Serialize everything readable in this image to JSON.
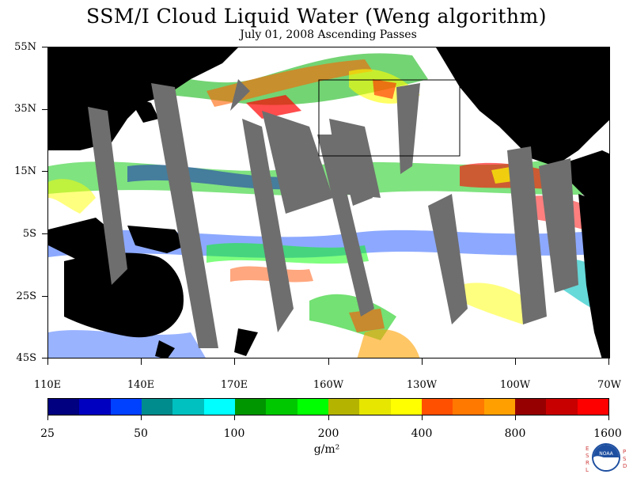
{
  "title": "SSM/I Cloud Liquid Water (Weng algorithm)",
  "subtitle": "July 01, 2008  Ascending Passes",
  "latitude_labels": [
    "55N",
    "35N",
    "15N",
    "5S",
    "25S",
    "45S"
  ],
  "longitude_labels": [
    "110E",
    "140E",
    "170E",
    "160W",
    "130W",
    "100W",
    "70W"
  ],
  "colorbar": {
    "colors": [
      "#000080",
      "#0000c0",
      "#0040ff",
      "#008c8c",
      "#00c0c0",
      "#00ffff",
      "#009600",
      "#00c800",
      "#00ff00",
      "#b4b400",
      "#e6e600",
      "#ffff00",
      "#ff5000",
      "#ff7800",
      "#ffa000",
      "#960000",
      "#c80000",
      "#ff0000"
    ],
    "tick_labels": [
      "25",
      "50",
      "100",
      "200",
      "400",
      "800",
      "1600"
    ],
    "units": "g/m²"
  },
  "logo": {
    "left_letters": "ESRL",
    "right_letters": "PSD",
    "center": "NOAA"
  }
}
